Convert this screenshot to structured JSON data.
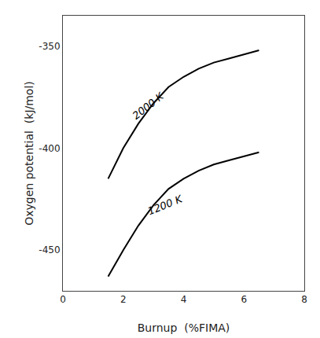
{
  "chart_data": {
    "type": "line",
    "x_label": "Burnup  (%FIMA)",
    "y_label": "Oxygen potential  (kJ/mol)",
    "series": [
      {
        "color": "#000000",
        "x": [
          1.5,
          2.0,
          2.5,
          3.0,
          3.5,
          4.0,
          4.5,
          5.0,
          5.5,
          6.0,
          6.5
        ],
        "values": [
          -415,
          -400,
          -388,
          -378,
          -370,
          -365,
          -361,
          -358,
          -356,
          -354,
          -352
        ]
      },
      {
        "color": "#000000",
        "x": [
          1.5,
          2.0,
          2.5,
          3.0,
          3.5,
          4.0,
          4.5,
          5.0,
          5.5,
          6.0,
          6.5
        ],
        "values": [
          -463,
          -450,
          -438,
          -428,
          -420,
          -415,
          -411,
          -408,
          -406,
          -404,
          -402
        ]
      }
    ],
    "annotations": [
      {
        "text": "2000 K",
        "x": 2.15,
        "y": -388
      },
      {
        "text": "1200 K",
        "x": 2.7,
        "y": -435
      }
    ],
    "xlim": [
      0,
      8
    ],
    "ylim": [
      -470,
      -335
    ],
    "xticks": [
      0,
      2,
      4,
      6,
      8
    ],
    "yticks": [
      -450,
      -400,
      -350
    ],
    "grid": false
  }
}
